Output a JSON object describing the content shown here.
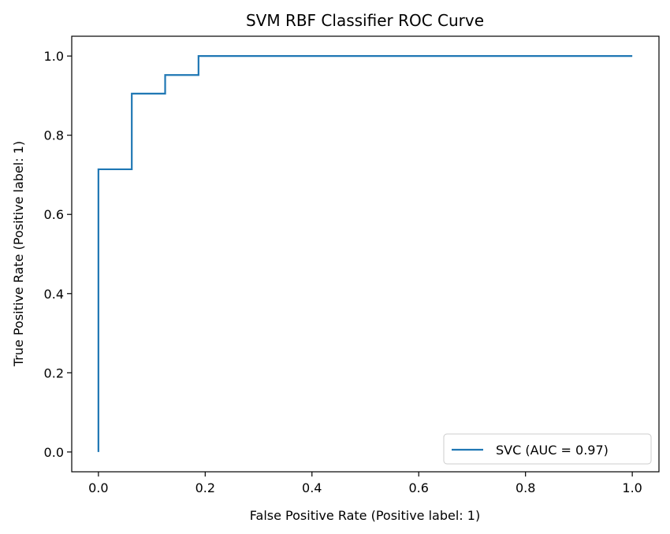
{
  "chart_data": {
    "type": "line",
    "title": "SVM RBF Classifier ROC Curve",
    "xlabel": "False Positive Rate (Positive label: 1)",
    "ylabel": "True Positive Rate (Positive label: 1)",
    "xlim": [
      -0.05,
      1.05
    ],
    "ylim": [
      -0.05,
      1.05
    ],
    "xticks": [
      "0.0",
      "0.2",
      "0.4",
      "0.6",
      "0.8",
      "1.0"
    ],
    "yticks": [
      "0.0",
      "0.2",
      "0.4",
      "0.6",
      "0.8",
      "1.0"
    ],
    "grid": false,
    "legend_position": "lower-right",
    "series": [
      {
        "name": "SVC (AUC = 0.97)",
        "color": "#1f77b4",
        "x": [
          0.0,
          0.0,
          0.0625,
          0.0625,
          0.125,
          0.125,
          0.1875,
          0.1875,
          1.0
        ],
        "y": [
          0.0,
          0.714,
          0.714,
          0.905,
          0.905,
          0.952,
          0.952,
          1.0,
          1.0
        ]
      }
    ]
  }
}
